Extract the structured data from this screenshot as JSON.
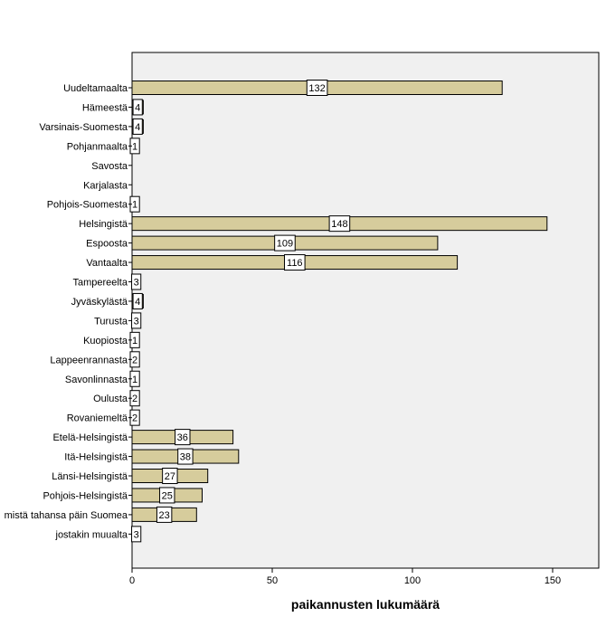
{
  "chart_data": {
    "type": "bar",
    "orientation": "horizontal",
    "categories": [
      "Uudeltamaalta",
      "Hämeestä",
      "Varsinais-Suomesta",
      "Pohjanmaalta",
      "Savosta",
      "Karjalasta",
      "Pohjois-Suomesta",
      "Helsingistä",
      "Espoosta",
      "Vantaalta",
      "Tampereelta",
      "Jyväskylästä",
      "Turusta",
      "Kuopiosta",
      "Lappeenrannasta",
      "Savonlinnasta",
      "Oulusta",
      "Rovaniemeltä",
      "Etelä-Helsingistä",
      "Itä-Helsingistä",
      "Länsi-Helsingistä",
      "Pohjois-Helsingistä",
      "mistä tahansa päin Suomea",
      "jostakin muualta"
    ],
    "values": [
      132,
      4,
      4,
      1,
      null,
      null,
      1,
      148,
      109,
      116,
      3,
      4,
      3,
      1,
      2,
      1,
      2,
      2,
      36,
      38,
      27,
      25,
      23,
      3
    ],
    "data_labels": [
      "132",
      "4",
      "4",
      "1",
      "",
      "",
      "1",
      "148",
      "109",
      "116",
      "3",
      "4",
      "3",
      "1",
      "2",
      "1",
      "2",
      "2",
      "36",
      "38",
      "27",
      "25",
      "23",
      "3"
    ],
    "xlabel": "paikannusten lukumäärä",
    "ylabel": "",
    "xlim": [
      0,
      166
    ],
    "xticks": [
      0,
      50,
      100,
      150
    ],
    "grid": false,
    "colors": {
      "bar_fill": "#d6cc9c",
      "bar_stroke": "#000000",
      "plot_bg": "#f0f0f0",
      "plot_border": "#000000",
      "label_box_fill": "#ffffff"
    }
  }
}
